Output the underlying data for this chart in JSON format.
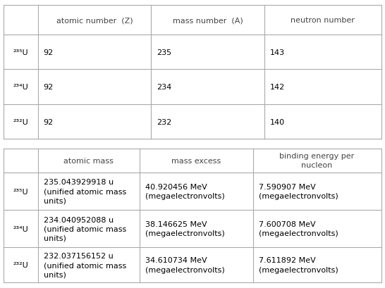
{
  "table1_headers": [
    "",
    "atomic number  (Z)",
    "mass number  (A)",
    "neutron number"
  ],
  "table1_rows": [
    [
      "²³⁵U",
      "92",
      "235",
      "143"
    ],
    [
      "²³⁴U",
      "92",
      "234",
      "142"
    ],
    [
      "²³²U",
      "92",
      "232",
      "140"
    ]
  ],
  "table2_headers": [
    "",
    "atomic mass",
    "mass excess",
    "binding energy per\nnucleon"
  ],
  "table2_rows": [
    [
      "²³⁵U",
      "235.043929918 u\n(unified atomic mass\nunits)",
      "40.920456 MeV\n(megaelectronvolts)",
      "7.590907 MeV\n(megaelectronvolts)"
    ],
    [
      "²³⁴U",
      "234.040952088 u\n(unified atomic mass\nunits)",
      "38.146625 MeV\n(megaelectronvolts)",
      "7.600708 MeV\n(megaelectronvolts)"
    ],
    [
      "²³²U",
      "232.037156152 u\n(unified atomic mass\nunits)",
      "34.610734 MeV\n(megaelectronvolts)",
      "7.611892 MeV\n(megaelectronvolts)"
    ]
  ],
  "bg_color": "#ffffff",
  "border_color": "#aaaaaa",
  "header_text_color": "#444444",
  "cell_text_color": "#000000",
  "font_size": 8.0
}
